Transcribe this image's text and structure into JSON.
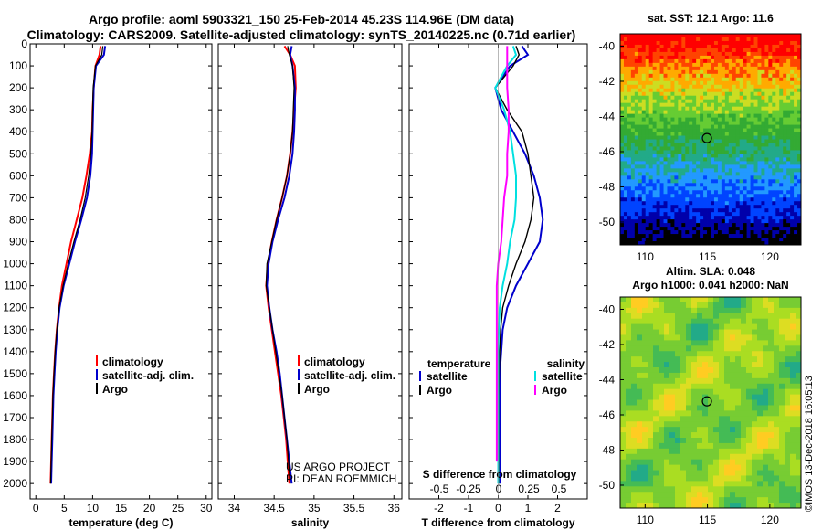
{
  "header": {
    "line1": "Argo profile: aoml 5903321_150 25-Feb-2014 45.23S 114.96E (DM data)",
    "line2": "Climatology: CARS2009. Satellite-adjusted climatology: synTS_20140225.nc (0.71d earlier)"
  },
  "colors": {
    "climatology": "#ff0000",
    "satellite": "#0000cc",
    "argo": "#000000",
    "sat_salinity": "#00e0e0",
    "argo_salinity": "#ff00ff"
  },
  "chart_data": [
    {
      "type": "line",
      "panel": "temperature",
      "xlabel": "temperature (deg C)",
      "ylabel": "",
      "xlim": [
        -1,
        31
      ],
      "ylim": [
        2070,
        0
      ],
      "xticks": [
        0,
        5,
        10,
        15,
        20,
        25,
        30
      ],
      "yticks": [
        0,
        100,
        200,
        300,
        400,
        500,
        600,
        700,
        800,
        900,
        1000,
        1100,
        1200,
        1300,
        1400,
        1500,
        1600,
        1700,
        1800,
        1900,
        2000
      ],
      "legend": [
        "climatology",
        "satellite-adj. clim.",
        "Argo"
      ],
      "series": [
        {
          "name": "climatology",
          "color": "#ff0000",
          "width": 2,
          "x": [
            11.4,
            11.2,
            10.5,
            10.2,
            10.0,
            9.9,
            9.5,
            8.9,
            8.2,
            7.2,
            6.2,
            5.4,
            4.6,
            4.1,
            3.7,
            3.4,
            3.2,
            3.0,
            2.9,
            2.8,
            2.7,
            2.6
          ],
          "y": [
            10,
            50,
            100,
            200,
            300,
            400,
            500,
            600,
            700,
            800,
            900,
            1000,
            1100,
            1200,
            1300,
            1400,
            1500,
            1600,
            1700,
            1800,
            1900,
            2000
          ]
        },
        {
          "name": "satellite-adj. clim.",
          "color": "#0000cc",
          "width": 2,
          "x": [
            12.2,
            12.0,
            10.6,
            10.2,
            10.1,
            10.0,
            9.9,
            9.6,
            9.0,
            8.0,
            6.9,
            5.9,
            4.9,
            4.2,
            3.8,
            3.5,
            3.3,
            3.1,
            3.0,
            2.9,
            2.8,
            2.7
          ],
          "y": [
            10,
            50,
            100,
            200,
            300,
            400,
            500,
            600,
            700,
            800,
            900,
            1000,
            1100,
            1200,
            1300,
            1400,
            1500,
            1600,
            1700,
            1800,
            1900,
            2000
          ]
        },
        {
          "name": "Argo",
          "color": "#000000",
          "width": 1.2,
          "x": [
            11.8,
            11.6,
            10.5,
            10.1,
            10.0,
            9.9,
            9.7,
            9.3,
            8.7,
            7.8,
            6.7,
            5.7,
            4.8,
            4.1,
            3.7,
            3.4,
            3.2,
            3.0,
            2.9,
            2.8,
            2.7,
            2.6
          ],
          "y": [
            10,
            50,
            100,
            200,
            300,
            400,
            500,
            600,
            700,
            800,
            900,
            1000,
            1100,
            1200,
            1300,
            1400,
            1500,
            1600,
            1700,
            1800,
            1900,
            2000
          ]
        }
      ]
    },
    {
      "type": "line",
      "panel": "salinity",
      "xlabel": "salinity",
      "ylabel": "",
      "xlim": [
        33.8,
        36.1
      ],
      "ylim": [
        2070,
        0
      ],
      "xticks": [
        34,
        34.5,
        35,
        35.5,
        36
      ],
      "legend": [
        "climatology",
        "satellite-adj. clim.",
        "Argo"
      ],
      "annotations": [
        "US ARGO PROJECT",
        "PI: DEAN ROEMMICH"
      ],
      "series": [
        {
          "name": "climatology",
          "color": "#ff0000",
          "width": 2,
          "x": [
            34.63,
            34.7,
            34.76,
            34.77,
            34.75,
            34.73,
            34.7,
            34.66,
            34.6,
            34.53,
            34.47,
            34.42,
            34.4,
            34.43,
            34.47,
            34.51,
            34.55,
            34.59,
            34.62,
            34.65,
            34.67,
            34.69
          ],
          "y": [
            10,
            50,
            100,
            200,
            300,
            400,
            500,
            600,
            700,
            800,
            900,
            1000,
            1100,
            1200,
            1300,
            1400,
            1500,
            1600,
            1700,
            1800,
            1900,
            2000
          ]
        },
        {
          "name": "satellite-adj. clim.",
          "color": "#0000cc",
          "width": 2,
          "x": [
            34.72,
            34.7,
            34.73,
            34.76,
            34.76,
            34.75,
            34.73,
            34.69,
            34.63,
            34.55,
            34.48,
            34.43,
            34.41,
            34.44,
            34.48,
            34.53,
            34.57,
            34.6,
            34.63,
            34.66,
            34.69,
            34.72
          ],
          "y": [
            10,
            50,
            100,
            200,
            300,
            400,
            500,
            600,
            700,
            800,
            900,
            1000,
            1100,
            1200,
            1300,
            1400,
            1500,
            1600,
            1700,
            1800,
            1900,
            2000
          ]
        },
        {
          "name": "Argo",
          "color": "#000000",
          "width": 1.2,
          "x": [
            34.67,
            34.69,
            34.73,
            34.75,
            34.74,
            34.73,
            34.7,
            34.66,
            34.6,
            34.53,
            34.47,
            34.41,
            34.4,
            34.44,
            34.48,
            34.52,
            34.56,
            34.6,
            34.63,
            34.66,
            34.68,
            34.7
          ],
          "y": [
            10,
            50,
            100,
            200,
            300,
            400,
            500,
            600,
            700,
            800,
            900,
            1000,
            1100,
            1200,
            1300,
            1400,
            1500,
            1600,
            1700,
            1800,
            1900,
            2000
          ]
        }
      ]
    },
    {
      "type": "line",
      "panel": "difference",
      "xlabel": "T difference from climatology",
      "xlabel_top": "S difference from climatology",
      "xlim": [
        -3,
        3
      ],
      "ylim": [
        2070,
        0
      ],
      "xticks": [
        -2,
        -1,
        0,
        1,
        2
      ],
      "xticks_top": [
        "-0.5",
        "-0.25",
        "0",
        "0.25",
        "0.5"
      ],
      "legend_temperature": {
        "title": "temperature",
        "items": [
          "satellite",
          "Argo"
        ]
      },
      "legend_salinity": {
        "title": "salinity",
        "items": [
          "satellite",
          "Argo"
        ]
      },
      "series": [
        {
          "name": "T satellite",
          "color": "#0000cc",
          "width": 2,
          "x": [
            0.8,
            1.0,
            0.4,
            -0.1,
            0.1,
            0.5,
            0.9,
            1.2,
            1.4,
            1.5,
            1.4,
            1.0,
            0.6,
            0.3,
            0.15,
            0.1,
            0.05,
            0.05,
            0.05,
            0.05,
            0.05
          ],
          "y": [
            10,
            50,
            100,
            200,
            300,
            400,
            500,
            600,
            700,
            800,
            900,
            1000,
            1100,
            1200,
            1300,
            1400,
            1500,
            1600,
            1700,
            1800,
            2000
          ]
        },
        {
          "name": "T Argo",
          "color": "#000000",
          "width": 1.4,
          "x": [
            0.6,
            0.7,
            0.5,
            -0.1,
            0.3,
            0.8,
            1.0,
            1.1,
            1.2,
            1.1,
            0.9,
            0.6,
            0.35,
            0.15,
            0.08,
            0.05,
            0.03,
            0.02,
            0.02,
            0.02,
            0.02
          ],
          "y": [
            10,
            50,
            100,
            200,
            300,
            400,
            500,
            600,
            700,
            800,
            900,
            1000,
            1100,
            1200,
            1300,
            1400,
            1500,
            1600,
            1700,
            1800,
            2000
          ]
        },
        {
          "name": "S satellite",
          "color": "#00e0e0",
          "width": 2,
          "x": [
            0.5,
            0.6,
            0.3,
            -0.1,
            0.2,
            0.4,
            0.5,
            0.6,
            0.6,
            0.55,
            0.4,
            0.3,
            0.15,
            0.05,
            0.02,
            0.0,
            0.0,
            0.0,
            0.0,
            0.0,
            0.0
          ],
          "y": [
            10,
            50,
            100,
            200,
            300,
            400,
            500,
            600,
            700,
            800,
            900,
            1000,
            1100,
            1200,
            1300,
            1400,
            1500,
            1600,
            1700,
            1800,
            2000
          ]
        },
        {
          "name": "S Argo",
          "color": "#ff00ff",
          "width": 2,
          "x": [
            0.3,
            0.3,
            0.3,
            0.3,
            0.35,
            0.35,
            0.3,
            0.3,
            0.2,
            0.15,
            0.1,
            0.0,
            -0.05,
            -0.05,
            -0.05,
            -0.05,
            -0.05,
            -0.05,
            -0.05,
            -0.05,
            -0.05
          ],
          "y": [
            10,
            50,
            100,
            200,
            300,
            400,
            500,
            600,
            700,
            800,
            900,
            1000,
            1100,
            1200,
            1300,
            1400,
            1500,
            1600,
            1700,
            1800,
            1900
          ]
        }
      ]
    },
    {
      "type": "heatmap",
      "panel": "sst_map",
      "title": "sat. SST: 12.1 Argo: 11.6",
      "xlim": [
        108,
        122.5
      ],
      "ylim": [
        -51.3,
        -39.3
      ],
      "xticks": [
        110,
        115,
        120
      ],
      "yticks": [
        -40,
        -42,
        -44,
        -46,
        -48,
        -50
      ],
      "marker": {
        "lon": 114.96,
        "lat": -45.23
      }
    },
    {
      "type": "heatmap",
      "panel": "sla_map",
      "title": "Altim. SLA: 0.048",
      "subtitle": "Argo h1000: 0.041 h2000: NaN",
      "xlim": [
        108,
        122.5
      ],
      "ylim": [
        -51.3,
        -39.3
      ],
      "xticks": [
        110,
        115,
        120
      ],
      "yticks": [
        -40,
        -42,
        -44,
        -46,
        -48,
        -50
      ],
      "marker": {
        "lon": 114.96,
        "lat": -45.23
      }
    }
  ],
  "watermark": "©IMOS 13-Dec-2018 16:05:13"
}
